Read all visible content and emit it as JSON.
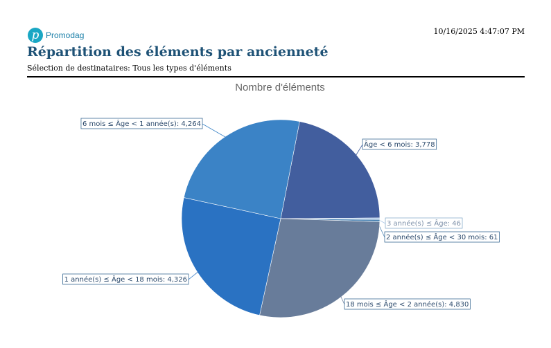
{
  "header": {
    "brand": "Promodag",
    "timestamp": "10/16/2025 4:47:07 PM",
    "title": "Répartition des éléments par ancienneté",
    "subtitle": "Sélection de destinataires: Tous les types d'éléments"
  },
  "chart_data": {
    "type": "pie",
    "title": "Nombre d'éléments",
    "values": [
      3778,
      46,
      61,
      4830,
      4326,
      4264
    ],
    "value_labels": [
      "Âge < 6 mois: 3,778",
      "3 année(s) ≤ Âge: 46",
      "2 année(s) ≤ Âge < 30 mois: 61",
      "18 mois ≤ Âge < 2 année(s): 4,830",
      "1 année(s) ≤ Âge < 18 mois: 4,326",
      "6 mois ≤ Âge < 1 année(s): 4,264"
    ],
    "colors": [
      "#425e9e",
      "#a9c6e6",
      "#4f86b5",
      "#687c9a",
      "#2a72c2",
      "#3b83c6"
    ]
  }
}
